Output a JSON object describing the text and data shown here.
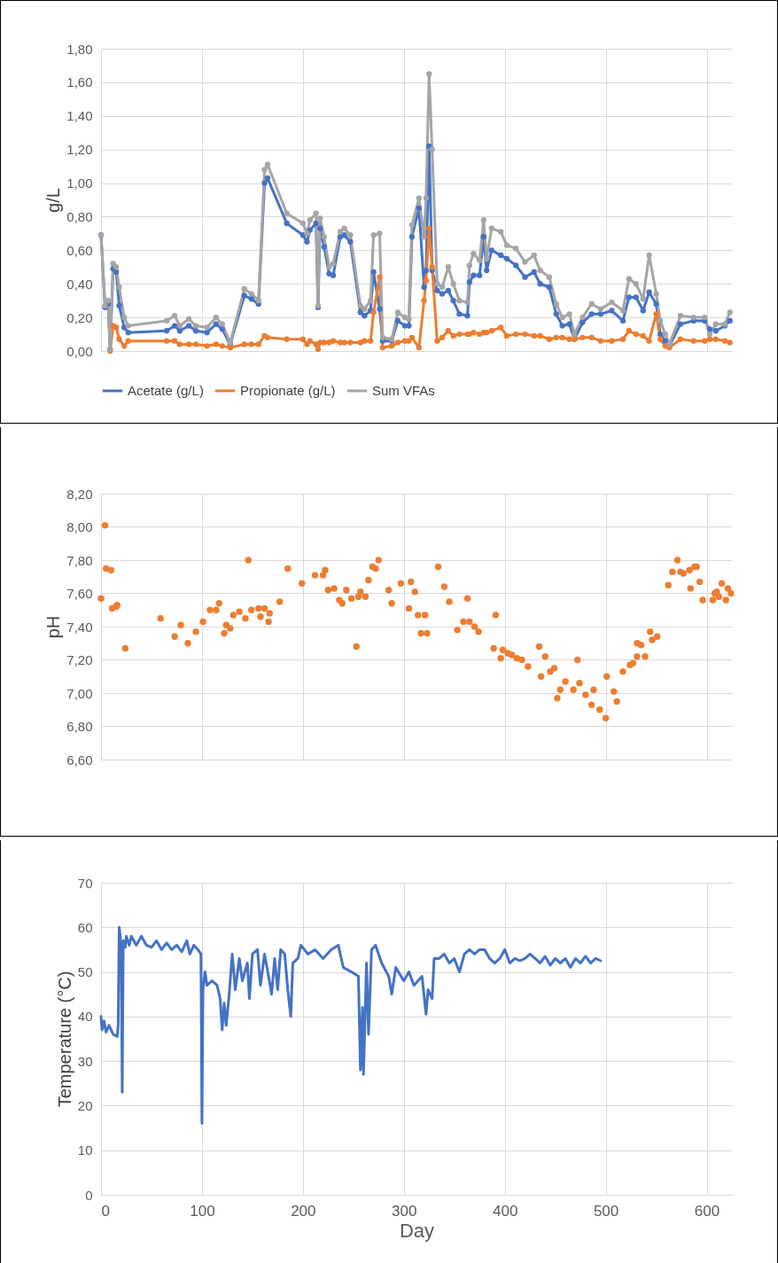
{
  "chart_data": [
    {
      "type": "line",
      "ylabel": "g/L",
      "xlim": [
        0,
        625
      ],
      "xticks": [
        {
          "value": 0,
          "label": null
        },
        {
          "value": 100,
          "label": null
        },
        {
          "value": 200,
          "label": null
        },
        {
          "value": 300,
          "label": null
        },
        {
          "value": 400,
          "label": null
        },
        {
          "value": 500,
          "label": null
        },
        {
          "value": 600,
          "label": null
        }
      ],
      "ylim": [
        0,
        1.8
      ],
      "yticks": [
        {
          "value": 0,
          "label": "0,00"
        },
        {
          "value": 0.2,
          "label": "0,20"
        },
        {
          "value": 0.4,
          "label": "0,40"
        },
        {
          "value": 0.6,
          "label": "0,60"
        },
        {
          "value": 0.8,
          "label": "0,80"
        },
        {
          "value": 1,
          "label": "1,00"
        },
        {
          "value": 1.2,
          "label": "1,20"
        },
        {
          "value": 1.4,
          "label": "1,40"
        },
        {
          "value": 1.6,
          "label": "1,60"
        },
        {
          "value": 1.8,
          "label": "1,80"
        }
      ],
      "tick_labels": "y",
      "grid": true,
      "legend": "bottom",
      "marker": "circle",
      "x": [
        0,
        4,
        7,
        9,
        12,
        15,
        18,
        23,
        27,
        65,
        73,
        78,
        87,
        94,
        105,
        114,
        120,
        128,
        142,
        149,
        156,
        162,
        165,
        184,
        200,
        204,
        207,
        213,
        215,
        217,
        221,
        226,
        230,
        237,
        241,
        247,
        257,
        261,
        267,
        270,
        276,
        279,
        288,
        294,
        301,
        305,
        308,
        315,
        320,
        322,
        325,
        328,
        333,
        338,
        344,
        349,
        355,
        363,
        365,
        369,
        375,
        379,
        382,
        387,
        396,
        402,
        411,
        420,
        429,
        435,
        444,
        451,
        457,
        464,
        469,
        477,
        486,
        495,
        506,
        517,
        523,
        530,
        537,
        543,
        550,
        554,
        559,
        563,
        574,
        587,
        598,
        603,
        609,
        618,
        623
      ],
      "series": [
        {
          "name": "Acetate (g/L)",
          "color": "#4472c4",
          "values": [
            0.69,
            0.26,
            0.28,
            0.01,
            0.49,
            0.47,
            0.27,
            0.14,
            0.11,
            0.12,
            0.15,
            0.12,
            0.15,
            0.12,
            0.11,
            0.16,
            0.13,
            0.04,
            0.33,
            0.31,
            0.28,
            1.0,
            1.03,
            0.76,
            0.69,
            0.65,
            0.72,
            0.76,
            0.26,
            0.73,
            0.62,
            0.46,
            0.45,
            0.68,
            0.69,
            0.65,
            0.23,
            0.21,
            0.24,
            0.47,
            0.25,
            0.06,
            0.06,
            0.18,
            0.15,
            0.15,
            0.68,
            0.85,
            0.38,
            0.48,
            1.22,
            0.48,
            0.36,
            0.34,
            0.36,
            0.3,
            0.22,
            0.21,
            0.41,
            0.45,
            0.45,
            0.68,
            0.48,
            0.6,
            0.57,
            0.55,
            0.51,
            0.44,
            0.47,
            0.4,
            0.38,
            0.22,
            0.15,
            0.16,
            0.07,
            0.17,
            0.22,
            0.22,
            0.24,
            0.18,
            0.32,
            0.32,
            0.24,
            0.35,
            0.28,
            0.1,
            0.06,
            0.03,
            0.16,
            0.18,
            0.18,
            0.13,
            0.12,
            0.15,
            0.18
          ]
        },
        {
          "name": "Propionate (g/L)",
          "color": "#ed7d31",
          "values": [
            null,
            null,
            null,
            0.0,
            0.15,
            0.14,
            0.07,
            0.03,
            0.06,
            0.06,
            0.06,
            0.04,
            0.04,
            0.04,
            0.03,
            0.04,
            0.03,
            0.02,
            0.04,
            0.04,
            0.04,
            0.09,
            0.08,
            0.07,
            0.07,
            0.04,
            0.06,
            0.04,
            0.01,
            0.05,
            0.05,
            0.05,
            0.06,
            0.05,
            0.05,
            0.05,
            0.05,
            0.06,
            0.06,
            0.23,
            0.44,
            0.02,
            0.03,
            0.05,
            0.06,
            0.06,
            0.08,
            0.02,
            0.3,
            0.42,
            0.73,
            0.5,
            0.06,
            0.08,
            0.12,
            0.09,
            0.1,
            0.1,
            0.1,
            0.11,
            0.1,
            0.11,
            0.11,
            0.12,
            0.14,
            0.09,
            0.1,
            0.1,
            0.09,
            0.09,
            0.07,
            0.08,
            0.08,
            0.07,
            0.07,
            0.08,
            0.08,
            0.06,
            0.06,
            0.07,
            0.12,
            0.1,
            0.09,
            0.06,
            0.22,
            0.07,
            0.03,
            0.02,
            0.07,
            0.06,
            0.06,
            0.07,
            0.07,
            0.06,
            0.05
          ]
        },
        {
          "name": "Sum VFAs",
          "color": "#a5a5a5",
          "values": [
            0.69,
            0.27,
            0.3,
            0.01,
            0.52,
            0.5,
            0.38,
            0.2,
            0.15,
            0.18,
            0.21,
            0.15,
            0.19,
            0.15,
            0.14,
            0.2,
            0.16,
            0.05,
            0.37,
            0.34,
            0.3,
            1.08,
            1.11,
            0.82,
            0.76,
            0.7,
            0.78,
            0.82,
            0.27,
            0.79,
            0.68,
            0.5,
            0.52,
            0.71,
            0.73,
            0.69,
            0.27,
            0.25,
            0.3,
            0.69,
            0.7,
            0.08,
            0.07,
            0.23,
            0.2,
            0.19,
            0.75,
            0.91,
            0.68,
            0.91,
            1.65,
            1.2,
            0.4,
            0.38,
            0.5,
            0.4,
            0.3,
            0.29,
            0.51,
            0.58,
            0.54,
            0.78,
            0.55,
            0.73,
            0.71,
            0.63,
            0.61,
            0.53,
            0.57,
            0.48,
            0.44,
            0.28,
            0.2,
            0.22,
            0.1,
            0.2,
            0.28,
            0.25,
            0.29,
            0.24,
            0.43,
            0.4,
            0.31,
            0.57,
            0.34,
            0.18,
            0.1,
            0.04,
            0.21,
            0.2,
            0.2,
            0.1,
            0.16,
            0.16,
            0.23
          ]
        }
      ]
    },
    {
      "type": "scatter",
      "ylabel": "pH",
      "xlim": [
        0,
        625
      ],
      "xticks": [
        {
          "value": 0,
          "label": null
        },
        {
          "value": 100,
          "label": null
        },
        {
          "value": 200,
          "label": null
        },
        {
          "value": 300,
          "label": null
        },
        {
          "value": 400,
          "label": null
        },
        {
          "value": 500,
          "label": null
        },
        {
          "value": 600,
          "label": null
        }
      ],
      "ylim": [
        6.6,
        8.2
      ],
      "yticks": [
        {
          "value": 6.6,
          "label": "6,60"
        },
        {
          "value": 6.8,
          "label": "6,80"
        },
        {
          "value": 7,
          "label": "7,00"
        },
        {
          "value": 7.2,
          "label": "7,20"
        },
        {
          "value": 7.4,
          "label": "7,40"
        },
        {
          "value": 7.6,
          "label": "7,60"
        },
        {
          "value": 7.8,
          "label": "7,80"
        },
        {
          "value": 8,
          "label": "8,00"
        },
        {
          "value": 8.2,
          "label": "8,20"
        }
      ],
      "tick_labels": "y",
      "grid": true,
      "marker": "circle",
      "x": [
        0,
        4,
        5,
        10,
        11,
        15,
        16,
        24,
        59,
        73,
        79,
        86,
        94,
        101,
        108,
        114,
        117,
        122,
        124,
        128,
        131,
        137,
        143,
        146,
        149,
        156,
        158,
        162,
        166,
        167,
        177,
        185,
        199,
        212,
        220,
        222,
        225,
        231,
        236,
        239,
        243,
        248,
        253,
        255,
        257,
        262,
        265,
        269,
        272,
        275,
        285,
        288,
        297,
        305,
        307,
        311,
        314,
        317,
        321,
        323,
        334,
        340,
        345,
        353,
        359,
        363,
        365,
        370,
        374,
        389,
        391,
        396,
        398,
        403,
        407,
        412,
        417,
        423,
        434,
        436,
        440,
        445,
        449,
        452,
        455,
        460,
        468,
        472,
        474,
        480,
        486,
        488,
        494,
        500,
        501,
        508,
        511,
        517,
        524,
        527,
        531,
        531,
        535,
        539,
        544,
        546,
        551,
        562,
        566,
        571,
        574,
        577,
        583,
        584,
        588,
        590,
        593,
        596,
        606,
        608,
        610,
        612,
        615,
        619,
        621,
        624
      ],
      "series": [
        {
          "color": "#ed7d31",
          "values": [
            7.57,
            8.01,
            7.75,
            7.74,
            7.51,
            7.52,
            7.53,
            7.27,
            7.45,
            7.34,
            7.41,
            7.3,
            7.37,
            7.43,
            7.5,
            7.5,
            7.54,
            7.36,
            7.41,
            7.39,
            7.47,
            7.49,
            7.45,
            7.8,
            7.5,
            7.51,
            7.46,
            7.51,
            7.43,
            7.48,
            7.55,
            7.75,
            7.66,
            7.71,
            7.71,
            7.74,
            7.62,
            7.63,
            7.56,
            7.54,
            7.62,
            7.57,
            7.28,
            7.58,
            7.61,
            7.58,
            7.68,
            7.76,
            7.75,
            7.8,
            7.62,
            7.54,
            7.66,
            7.51,
            7.67,
            7.61,
            7.47,
            7.36,
            7.47,
            7.36,
            7.76,
            7.64,
            7.55,
            7.38,
            7.43,
            7.57,
            7.43,
            7.4,
            7.37,
            7.27,
            7.47,
            7.21,
            7.26,
            7.24,
            7.23,
            7.21,
            7.2,
            7.16,
            7.28,
            7.1,
            7.22,
            7.13,
            7.15,
            6.97,
            7.02,
            7.07,
            7.02,
            7.2,
            7.06,
            6.99,
            6.93,
            7.02,
            6.9,
            6.85,
            7.1,
            7.01,
            6.95,
            7.13,
            7.17,
            7.18,
            7.3,
            7.22,
            7.29,
            7.22,
            7.37,
            7.32,
            7.34,
            7.65,
            7.73,
            7.8,
            7.73,
            7.72,
            7.74,
            7.63,
            7.76,
            7.76,
            7.67,
            7.56,
            7.56,
            7.6,
            7.61,
            7.58,
            7.66,
            7.56,
            7.63,
            7.6
          ]
        }
      ]
    },
    {
      "type": "line",
      "xlabel": "Day",
      "ylabel": "Temperature (°C)",
      "xlim": [
        0,
        625
      ],
      "xticks": [
        0,
        100,
        200,
        300,
        400,
        500,
        600
      ],
      "ylim": [
        0,
        70
      ],
      "yticks": [
        0,
        10,
        20,
        30,
        40,
        50,
        60,
        70
      ],
      "grid": true,
      "marker": "none",
      "x": [
        0,
        1,
        3,
        5,
        8,
        12,
        16,
        17,
        18,
        19,
        20,
        21,
        22,
        24,
        25,
        28,
        30,
        35,
        40,
        45,
        50,
        55,
        60,
        65,
        70,
        75,
        80,
        85,
        88,
        92,
        96,
        99,
        100,
        101,
        103,
        105,
        110,
        115,
        118,
        120,
        122,
        124,
        127,
        130,
        133,
        137,
        140,
        145,
        147,
        150,
        155,
        158,
        162,
        166,
        169,
        172,
        175,
        178,
        182,
        185,
        188,
        190,
        195,
        198,
        205,
        212,
        220,
        228,
        235,
        240,
        248,
        255,
        257,
        259,
        260,
        263,
        265,
        268,
        272,
        278,
        285,
        288,
        292,
        300,
        305,
        310,
        318,
        322,
        324,
        328,
        330,
        335,
        340,
        345,
        350,
        355,
        360,
        365,
        370,
        375,
        380,
        385,
        390,
        395,
        400,
        405,
        410,
        415,
        420,
        425,
        430,
        435,
        440,
        445,
        450,
        455,
        460,
        465,
        470,
        475,
        480,
        485,
        490,
        495
      ],
      "series": [
        {
          "color": "#4472c4",
          "values": [
            40,
            37,
            39,
            36.5,
            38,
            36,
            35.5,
            38,
            60,
            58,
            55,
            23,
            57,
            55.5,
            58,
            56,
            58,
            56,
            58,
            56,
            55.5,
            57,
            55,
            56.5,
            55,
            56,
            54.5,
            57,
            54,
            56,
            55,
            54,
            16,
            46,
            50,
            47,
            48,
            47,
            44,
            37,
            43,
            38,
            45,
            54,
            46,
            53,
            48,
            52,
            44,
            54,
            55,
            47,
            54,
            49,
            45,
            53,
            46,
            55,
            54,
            46,
            40,
            52,
            53,
            56,
            54,
            55,
            53,
            55,
            56,
            51,
            50,
            49,
            28,
            42,
            27,
            52,
            36,
            55,
            56,
            52,
            49,
            45,
            51,
            48,
            50,
            47,
            49,
            40.5,
            46,
            44,
            53,
            53,
            54,
            52,
            53,
            50,
            54,
            55,
            54,
            55,
            55,
            53,
            52,
            53,
            55,
            52,
            53,
            52.5,
            53,
            54,
            53,
            52,
            53.5,
            51.5,
            53,
            52,
            53,
            51,
            53,
            52,
            53.5,
            52,
            53,
            52.5
          ]
        }
      ]
    }
  ]
}
